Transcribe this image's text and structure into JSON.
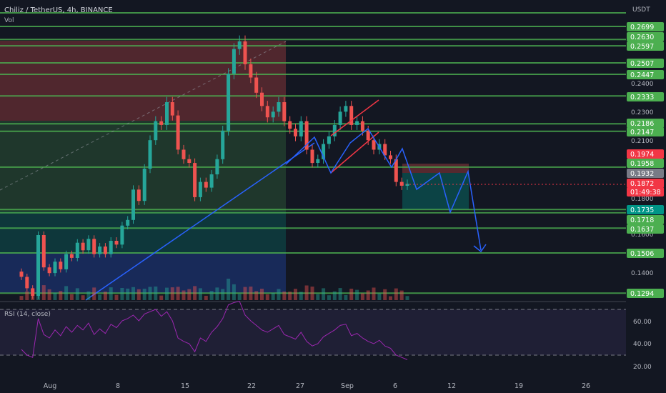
{
  "header": {
    "symbol": "Chiliz / TetherUS, 4h, BINANCE",
    "vol_label": "Vol",
    "currency": "USDT"
  },
  "colors": {
    "background": "#131722",
    "grid": "#1e222d",
    "up": "#26a69a",
    "down": "#ef5350",
    "level_line": "#4caf50",
    "level_badge": "#4caf50",
    "projection": "#2962ff",
    "channel": "#f23645",
    "rsi_line": "#9c27b0",
    "rsi_band": "#7e57c2",
    "current_price": "#f23645",
    "grey_badge": "#787b86"
  },
  "chart_data": {
    "type": "candlestick",
    "x_ticks": [
      "Aug",
      "8",
      "15",
      "22",
      "27",
      "Sep",
      "6",
      "12",
      "19",
      "26"
    ],
    "y_ticks": [
      "0.2400",
      "0.2300",
      "0.2100",
      "0.1800",
      "0.1600",
      "0.1400"
    ],
    "y_range_upper": [
      0.125,
      0.28
    ],
    "horizontal_levels": [
      0.2699,
      0.263,
      0.2597,
      0.2507,
      0.2447,
      0.2333,
      0.2186,
      0.2147,
      0.1958,
      0.1735,
      0.1718,
      0.1637,
      0.1506,
      0.1294
    ],
    "badges": [
      {
        "label": "0.2699",
        "kind": "level"
      },
      {
        "label": "0.2630",
        "kind": "level"
      },
      {
        "label": "0.2597",
        "kind": "level"
      },
      {
        "label": "0.2507",
        "kind": "level"
      },
      {
        "label": "0.2447",
        "kind": "level"
      },
      {
        "label": "0.2333",
        "kind": "level"
      },
      {
        "label": "0.2186",
        "kind": "level"
      },
      {
        "label": "0.2147",
        "kind": "level"
      },
      {
        "label": "0.1974",
        "kind": "red"
      },
      {
        "label": "0.1958",
        "kind": "level"
      },
      {
        "label": "0.1932",
        "kind": "grey"
      },
      {
        "label": "0.1872",
        "kind": "current"
      },
      {
        "label": "01:49:38",
        "kind": "timer"
      },
      {
        "label": "0.1735",
        "kind": "teal"
      },
      {
        "label": "0.1718",
        "kind": "level"
      },
      {
        "label": "0.1637",
        "kind": "level"
      },
      {
        "label": "0.1506",
        "kind": "level"
      },
      {
        "label": "0.1294",
        "kind": "level"
      }
    ],
    "price_path": [
      0.138,
      0.132,
      0.128,
      0.16,
      0.143,
      0.14,
      0.146,
      0.142,
      0.15,
      0.148,
      0.156,
      0.152,
      0.158,
      0.15,
      0.154,
      0.15,
      0.157,
      0.155,
      0.165,
      0.168,
      0.184,
      0.178,
      0.195,
      0.21,
      0.22,
      0.218,
      0.23,
      0.223,
      0.205,
      0.2,
      0.198,
      0.18,
      0.188,
      0.185,
      0.192,
      0.2,
      0.215,
      0.245,
      0.258,
      0.262,
      0.25,
      0.243,
      0.235,
      0.228,
      0.222,
      0.225,
      0.23,
      0.22,
      0.216,
      0.212,
      0.22,
      0.205,
      0.198,
      0.2,
      0.208,
      0.212,
      0.218,
      0.225,
      0.228,
      0.218,
      0.22,
      0.215,
      0.21,
      0.205,
      0.208,
      0.202,
      0.2,
      0.188,
      0.186,
      0.187
    ],
    "rsi": {
      "label": "RSI (14, close)",
      "ticks": [
        "60.00",
        "40.00",
        "20.00"
      ],
      "range": [
        15,
        80
      ],
      "overbought": 70,
      "oversold": 30,
      "values": [
        35,
        30,
        28,
        62,
        48,
        45,
        52,
        47,
        55,
        50,
        56,
        52,
        58,
        48,
        53,
        49,
        57,
        54,
        60,
        62,
        65,
        60,
        66,
        68,
        70,
        64,
        68,
        60,
        45,
        42,
        40,
        33,
        45,
        42,
        50,
        55,
        62,
        74,
        76,
        77,
        65,
        60,
        56,
        52,
        50,
        53,
        56,
        48,
        46,
        44,
        50,
        42,
        38,
        40,
        46,
        49,
        52,
        56,
        57,
        47,
        49,
        45,
        42,
        40,
        43,
        38,
        36,
        30,
        28,
        26
      ]
    }
  }
}
